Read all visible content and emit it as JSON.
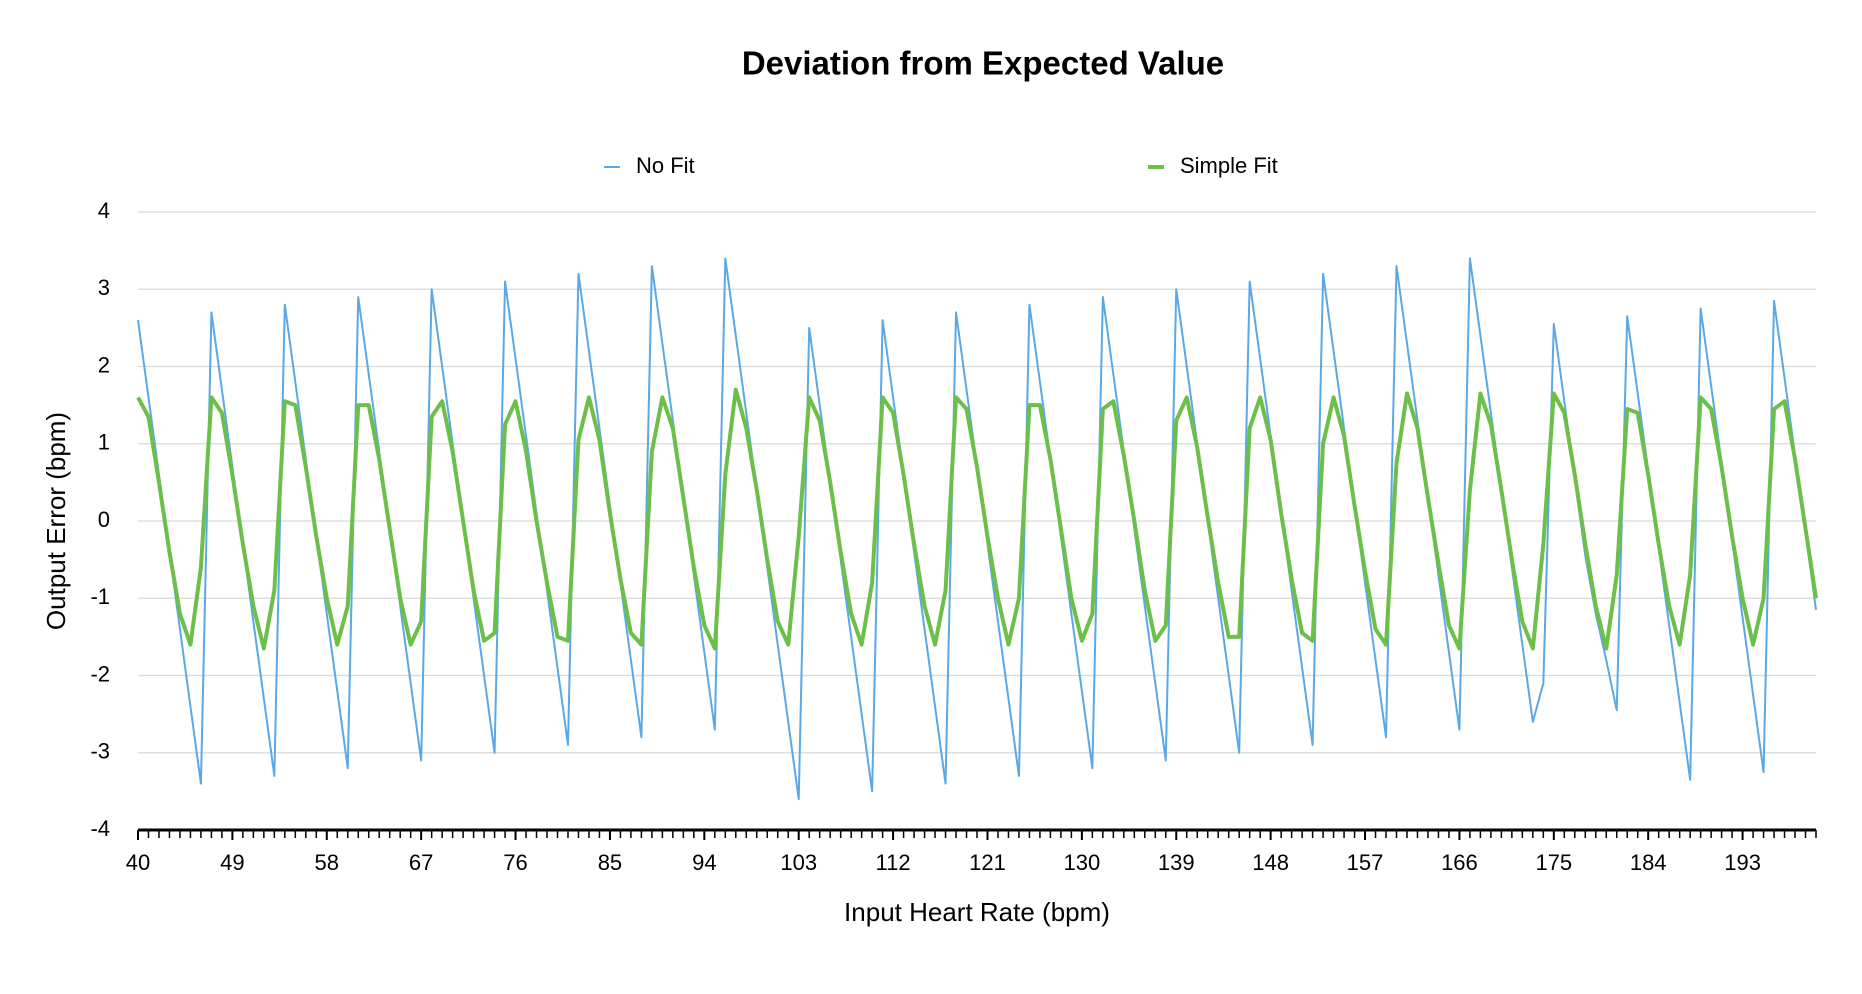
{
  "chart_data": {
    "type": "line",
    "title": "Deviation from Expected Value",
    "xlabel": "Input Heart Rate (bpm)",
    "ylabel": "Output Error (bpm)",
    "x": [
      40,
      41,
      42,
      43,
      44,
      45,
      46,
      47,
      48,
      49,
      50,
      51,
      52,
      53,
      54,
      55,
      56,
      57,
      58,
      59,
      60,
      61,
      62,
      63,
      64,
      65,
      66,
      67,
      68,
      69,
      70,
      71,
      72,
      73,
      74,
      75,
      76,
      77,
      78,
      79,
      80,
      81,
      82,
      83,
      84,
      85,
      86,
      87,
      88,
      89,
      90,
      91,
      92,
      93,
      94,
      95,
      96,
      97,
      98,
      99,
      100,
      101,
      102,
      103,
      104,
      105,
      106,
      107,
      108,
      109,
      110,
      111,
      112,
      113,
      114,
      115,
      116,
      117,
      118,
      119,
      120,
      121,
      122,
      123,
      124,
      125,
      126,
      127,
      128,
      129,
      130,
      131,
      132,
      133,
      134,
      135,
      136,
      137,
      138,
      139,
      140,
      141,
      142,
      143,
      144,
      145,
      146,
      147,
      148,
      149,
      150,
      151,
      152,
      153,
      154,
      155,
      156,
      157,
      158,
      159,
      160,
      161,
      162,
      163,
      164,
      165,
      166,
      167,
      168,
      169,
      170,
      171,
      172,
      173,
      174,
      175,
      176,
      177,
      178,
      179,
      180,
      181,
      182,
      183,
      184,
      185,
      186,
      187,
      188,
      189,
      190,
      191,
      192,
      193,
      194,
      195,
      196,
      197,
      198,
      199,
      200
    ],
    "series": [
      {
        "name": "No Fit",
        "color": "#5aa8e6",
        "width": 2,
        "values": [
          2.6,
          1.6,
          0.6,
          -0.4,
          -1.4,
          -2.4,
          -3.4,
          2.7,
          1.7,
          0.7,
          -0.3,
          -1.3,
          -2.3,
          -3.3,
          2.8,
          1.8,
          0.8,
          -0.2,
          -1.2,
          -2.2,
          -3.2,
          2.9,
          1.9,
          0.9,
          -0.1,
          -1.1,
          -2.1,
          -3.1,
          3.0,
          2.0,
          1.0,
          0,
          -1.0,
          -2.0,
          -3.0,
          3.1,
          2.1,
          1.1,
          0.1,
          -0.9,
          -1.9,
          -2.9,
          3.2,
          2.2,
          1.2,
          0.2,
          -0.8,
          -1.8,
          -2.8,
          3.3,
          2.3,
          1.3,
          0.3,
          -0.7,
          -1.7,
          -2.7,
          3.4,
          2.4,
          1.4,
          0.4,
          -0.6,
          -1.6,
          -2.6,
          -3.6,
          2.5,
          1.5,
          0.5,
          -0.5,
          -1.5,
          -2.5,
          -3.5,
          2.6,
          1.6,
          0.6,
          -0.4,
          -1.4,
          -2.4,
          -3.4,
          2.7,
          1.7,
          0.7,
          -0.3,
          -1.3,
          -2.3,
          -3.3,
          2.8,
          1.8,
          0.8,
          -0.2,
          -1.2,
          -2.2,
          -3.2,
          2.9,
          1.9,
          0.9,
          -0.1,
          -1.1,
          -2.1,
          -3.1,
          3.0,
          2.0,
          1.0,
          0,
          -1.0,
          -2.0,
          -3.0,
          3.1,
          2.1,
          1.1,
          0.1,
          -0.9,
          -1.9,
          -2.9,
          3.2,
          2.2,
          1.2,
          0.2,
          -0.8,
          -1.8,
          -2.8,
          3.3,
          2.3,
          1.3,
          0.3,
          -0.7,
          -1.7,
          -2.7,
          3.4,
          2.4,
          1.4,
          0.4,
          -0.6,
          -1.6,
          -2.6,
          -2.1,
          2.55,
          1.55,
          0.55,
          -0.45,
          -1.2,
          -1.8,
          -2.45,
          2.65,
          1.65,
          0.65,
          -0.35,
          -1.35,
          -2.35,
          -3.35,
          2.75,
          1.75,
          0.75,
          -0.25,
          -1.25,
          -2.25,
          -3.25,
          2.85,
          1.85,
          0.85,
          -0.15,
          -1.15
        ]
      },
      {
        "name": "Simple Fit",
        "color": "#6cbf48",
        "width": 4,
        "values": [
          1.6,
          1.35,
          0.5,
          -0.4,
          -1.2,
          -1.6,
          -0.6,
          1.6,
          1.4,
          0.6,
          -0.3,
          -1.1,
          -1.65,
          -0.9,
          1.55,
          1.5,
          0.7,
          -0.2,
          -1.0,
          -1.6,
          -1.1,
          1.5,
          1.5,
          0.8,
          -0.1,
          -1.0,
          -1.6,
          -1.3,
          1.35,
          1.55,
          0.9,
          0,
          -0.9,
          -1.55,
          -1.45,
          1.25,
          1.55,
          0.9,
          0,
          -0.8,
          -1.5,
          -1.55,
          1.05,
          1.6,
          1.05,
          0.1,
          -0.75,
          -1.45,
          -1.6,
          0.9,
          1.6,
          1.2,
          0.3,
          -0.6,
          -1.35,
          -1.65,
          0.6,
          1.7,
          1.2,
          0.4,
          -0.5,
          -1.3,
          -1.6,
          -0.2,
          1.6,
          1.3,
          0.5,
          -0.4,
          -1.2,
          -1.6,
          -0.8,
          1.6,
          1.4,
          0.6,
          -0.3,
          -1.1,
          -1.6,
          -0.9,
          1.6,
          1.45,
          0.7,
          -0.2,
          -1.0,
          -1.6,
          -1.0,
          1.5,
          1.5,
          0.8,
          -0.1,
          -1.0,
          -1.55,
          -1.2,
          1.45,
          1.55,
          0.85,
          0,
          -0.9,
          -1.55,
          -1.35,
          1.3,
          1.6,
          0.95,
          0.05,
          -0.8,
          -1.5,
          -1.5,
          1.2,
          1.6,
          1.05,
          0.1,
          -0.75,
          -1.45,
          -1.55,
          1.0,
          1.6,
          1.1,
          0.2,
          -0.65,
          -1.4,
          -1.6,
          0.75,
          1.65,
          1.2,
          0.3,
          -0.55,
          -1.35,
          -1.65,
          0.4,
          1.65,
          1.25,
          0.4,
          -0.5,
          -1.3,
          -1.65,
          -0.3,
          1.65,
          1.4,
          0.6,
          -0.3,
          -1.1,
          -1.65,
          -0.7,
          1.45,
          1.4,
          0.6,
          -0.3,
          -1.1,
          -1.6,
          -0.7,
          1.6,
          1.45,
          0.7,
          -0.2,
          -1.0,
          -1.6,
          -1.0,
          1.45,
          1.55,
          0.8,
          -0.1,
          -1.0
        ]
      }
    ],
    "xlim": [
      40,
      200
    ],
    "xticks": [
      40,
      49,
      58,
      67,
      76,
      85,
      94,
      103,
      112,
      121,
      130,
      139,
      148,
      157,
      166,
      175,
      184,
      193
    ],
    "ylim": [
      -4,
      4
    ],
    "yticks": [
      -4,
      -3,
      -2,
      -1,
      0,
      1,
      2,
      3,
      4
    ],
    "grid": true,
    "legend": "top"
  }
}
